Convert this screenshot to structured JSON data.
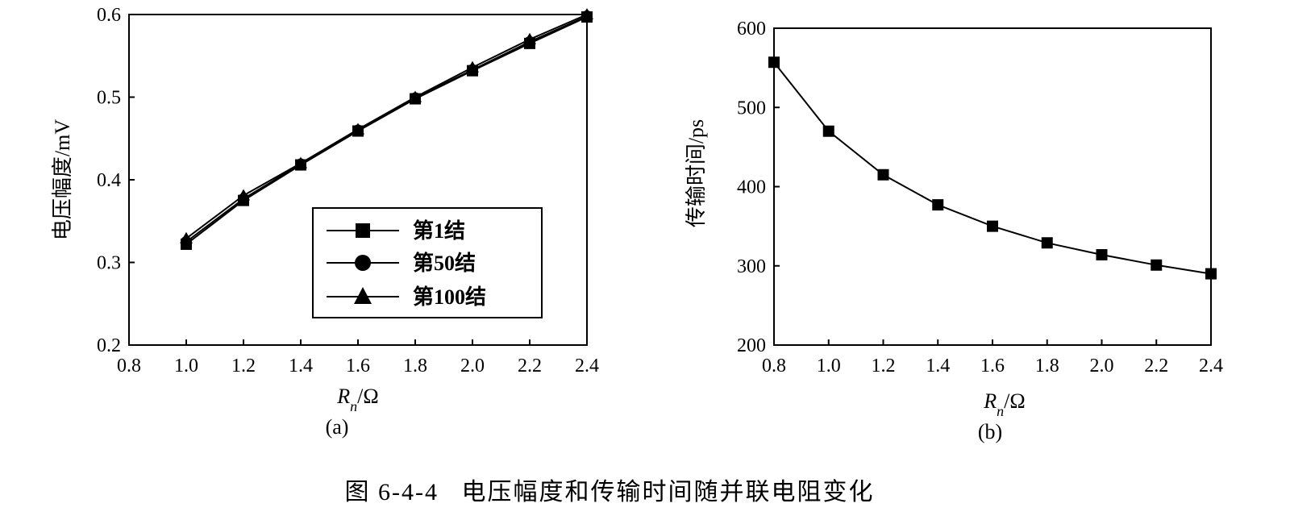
{
  "figure": {
    "caption": "图 6-4-4   电压幅度和传输时间随并联电阻变化"
  },
  "chart_data": [
    {
      "type": "line",
      "panel_label": "(a)",
      "xlabel_main": "R",
      "xlabel_sub": "n",
      "xlabel_unit": "/Ω",
      "ylabel": "电压幅度/mV",
      "xlim": [
        0.8,
        2.4
      ],
      "ylim": [
        0.2,
        0.6
      ],
      "x_ticks": [
        "0.8",
        "1.0",
        "1.2",
        "1.4",
        "1.6",
        "1.8",
        "2.0",
        "2.2",
        "2.4"
      ],
      "y_ticks": [
        "0.2",
        "0.3",
        "0.4",
        "0.5",
        "0.6"
      ],
      "grid": false,
      "legend_position": "bottom-right",
      "series": [
        {
          "name": "第1结",
          "marker": "square",
          "x": [
            1.0,
            1.2,
            1.4,
            1.6,
            1.8,
            2.0,
            2.2,
            2.4
          ],
          "y": [
            0.322,
            0.375,
            0.418,
            0.459,
            0.498,
            0.532,
            0.565,
            0.597
          ]
        },
        {
          "name": "第50结",
          "marker": "circle",
          "x": [
            1.0,
            1.2,
            1.4,
            1.6,
            1.8,
            2.0,
            2.2,
            2.4
          ],
          "y": [
            0.325,
            0.377,
            0.419,
            0.46,
            0.499,
            0.533,
            0.567,
            0.598
          ]
        },
        {
          "name": "第100结",
          "marker": "triangle",
          "x": [
            1.0,
            1.2,
            1.4,
            1.6,
            1.8,
            2.0,
            2.2,
            2.4
          ],
          "y": [
            0.329,
            0.381,
            0.42,
            0.461,
            0.5,
            0.536,
            0.57,
            0.6
          ]
        }
      ]
    },
    {
      "type": "line",
      "panel_label": "(b)",
      "xlabel_main": "R",
      "xlabel_sub": "n",
      "xlabel_unit": "/Ω",
      "ylabel": "传输时间/ps",
      "xlim": [
        0.8,
        2.4
      ],
      "ylim": [
        200,
        600
      ],
      "x_ticks": [
        "0.8",
        "1.0",
        "1.2",
        "1.4",
        "1.6",
        "1.8",
        "2.0",
        "2.2",
        "2.4"
      ],
      "y_ticks": [
        "200",
        "300",
        "400",
        "500",
        "600"
      ],
      "grid": false,
      "series": [
        {
          "marker": "square",
          "x": [
            0.8,
            1.0,
            1.2,
            1.4,
            1.6,
            1.8,
            2.0,
            2.2,
            2.4
          ],
          "y": [
            557,
            470,
            415,
            377,
            350,
            329,
            314,
            301,
            290
          ]
        }
      ]
    }
  ]
}
